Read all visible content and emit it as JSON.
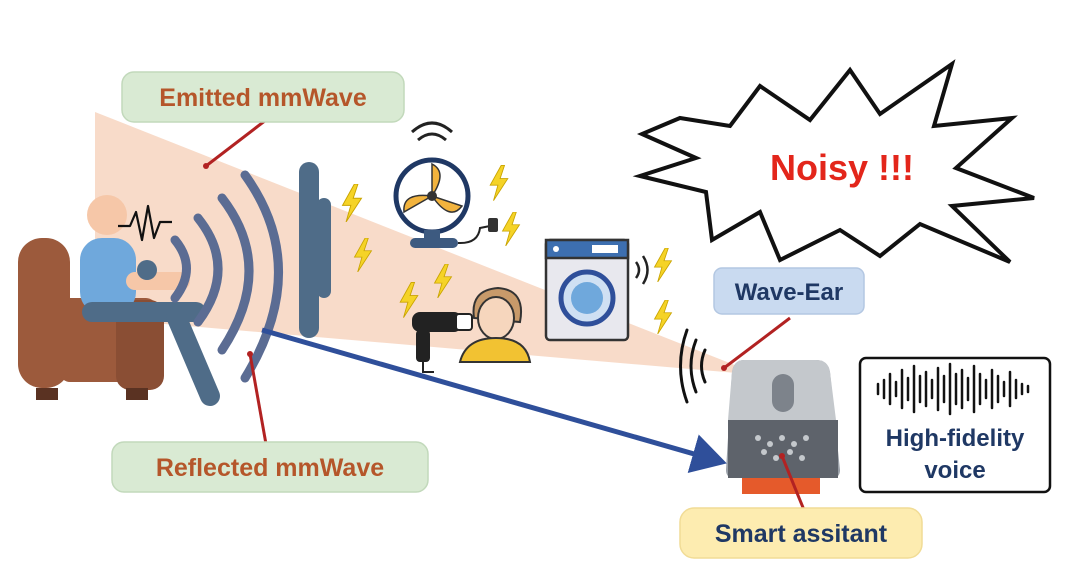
{
  "labels": {
    "emitted": "Emitted mmWave",
    "reflected": "Reflected mmWave",
    "wave_ear": "Wave-Ear",
    "smart_assistant": "Smart assitant",
    "noisy": "Noisy !!!",
    "voice_line1": "High-fidelity",
    "voice_line2": "voice"
  },
  "colors": {
    "beam": "#f8d9c6",
    "label_green_fill": "#d9ead3",
    "label_blue_fill": "#c9daf0",
    "label_yellow_fill": "#fdecb0",
    "label_text_brown": "#b5562a",
    "label_text_navy": "#1f3864",
    "noisy_red": "#e3261b",
    "pointer_red": "#b22222",
    "arrow_blue": "#2f4f9a",
    "chair_brown": "#9c5a3c",
    "person_blue": "#6fa8dc",
    "wall_slate": "#4f6c88"
  },
  "icons": [
    "person-on-chair-icon",
    "heartbeat-icon",
    "fan-icon",
    "washing-machine-icon",
    "hair-dryer-icon",
    "woman-icon",
    "lightning-icon",
    "smart-speaker-icon",
    "waveform-icon",
    "sound-wave-icon"
  ]
}
